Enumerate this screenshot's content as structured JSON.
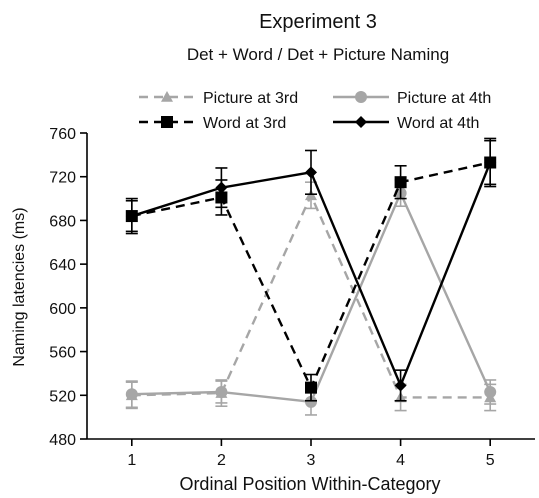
{
  "chart_data": {
    "type": "line",
    "title": "Experiment 3",
    "subtitle": "Det + Word / Det + Picture Naming",
    "xlabel": "Ordinal Position Within-Category",
    "ylabel": "Naming latencies (ms)",
    "x": [
      1,
      2,
      3,
      4,
      5
    ],
    "x_tick_labels": [
      "1",
      "2",
      "3",
      "4",
      "5"
    ],
    "xlim": [
      0.5,
      5.5
    ],
    "ylim": [
      480,
      760
    ],
    "y_ticks": [
      480,
      520,
      560,
      600,
      640,
      680,
      720,
      760
    ],
    "grid": false,
    "legend_position": "top",
    "series": [
      {
        "name": "Picture at 3rd",
        "color": "#a6a6a6",
        "line_style": "dashed",
        "marker": "triangle",
        "values": [
          520,
          522,
          703,
          518,
          518
        ],
        "error": [
          12,
          12,
          12,
          12,
          12
        ]
      },
      {
        "name": "Picture at 4th",
        "color": "#a6a6a6",
        "line_style": "solid",
        "marker": "circle",
        "values": [
          521,
          523,
          514,
          705,
          523
        ],
        "error": [
          12,
          10,
          12,
          12,
          11
        ]
      },
      {
        "name": "Word at 3rd",
        "color": "#000000",
        "line_style": "dashed",
        "marker": "square",
        "values": [
          684,
          701,
          527,
          715,
          733
        ],
        "error": [
          16,
          16,
          12,
          15,
          22
        ]
      },
      {
        "name": "Word at 4th",
        "color": "#000000",
        "line_style": "solid",
        "marker": "diamond",
        "values": [
          684,
          710,
          724,
          529,
          733
        ],
        "error": [
          14,
          18,
          20,
          14,
          20
        ]
      }
    ]
  }
}
